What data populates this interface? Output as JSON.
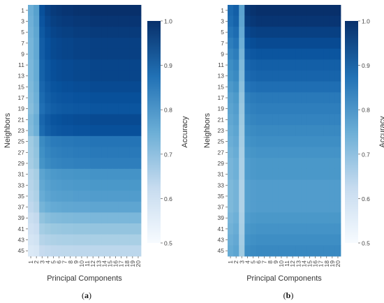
{
  "chart_data": [
    {
      "type": "heatmap",
      "caption_letter": "a",
      "xlabel": "Principal Components",
      "ylabel": "Neighbors",
      "x_ticks": [
        "1",
        "2",
        "3",
        "4",
        "5",
        "6",
        "7",
        "8",
        "9",
        "10",
        "11",
        "12",
        "13",
        "14",
        "15",
        "16",
        "17",
        "18",
        "19",
        "20"
      ],
      "y_ticks": [
        "1",
        "3",
        "5",
        "7",
        "9",
        "11",
        "13",
        "15",
        "17",
        "19",
        "21",
        "23",
        "25",
        "27",
        "29",
        "31",
        "33",
        "35",
        "37",
        "39",
        "41",
        "43",
        "45"
      ],
      "colorbar": {
        "label": "Accuracy",
        "min": 0.5,
        "max": 1.0,
        "ticks": [
          "0.5",
          "0.6",
          "0.7",
          "0.8",
          "0.9",
          "1.0"
        ]
      },
      "row_profile": [
        1.0,
        0.99,
        0.98,
        0.97,
        0.97,
        0.96,
        0.96,
        0.95,
        0.94,
        0.93,
        0.95,
        0.94,
        0.87,
        0.86,
        0.85,
        0.81,
        0.8,
        0.79,
        0.77,
        0.73,
        0.7,
        0.67,
        0.64
      ],
      "col_factor": [
        0.5,
        0.56,
        0.88,
        0.93,
        0.96,
        0.97,
        0.98,
        0.98,
        0.99,
        0.99,
        0.99,
        1.0,
        1.0,
        1.0,
        1.0,
        1.0,
        1.0,
        1.0,
        1.0,
        1.0
      ]
    },
    {
      "type": "heatmap",
      "caption_letter": "b",
      "xlabel": "Principal Components",
      "ylabel": "Neighbors",
      "x_ticks": [
        "1",
        "2",
        "3",
        "4",
        "5",
        "6",
        "7",
        "8",
        "9",
        "10",
        "11",
        "12",
        "13",
        "14",
        "15",
        "16",
        "17",
        "18",
        "19",
        "20"
      ],
      "y_ticks": [
        "1",
        "3",
        "5",
        "7",
        "9",
        "11",
        "13",
        "15",
        "17",
        "19",
        "21",
        "23",
        "25",
        "27",
        "29",
        "31",
        "33",
        "35",
        "37",
        "39",
        "41",
        "43",
        "45"
      ],
      "colorbar": {
        "label": "Accuracy",
        "min": 0.5,
        "max": 1.0,
        "ticks": [
          "0.5",
          "0.6",
          "0.7",
          "0.8",
          "0.9",
          "1.0"
        ]
      },
      "row_profile": [
        1.0,
        0.99,
        0.97,
        0.95,
        0.93,
        0.91,
        0.9,
        0.88,
        0.86,
        0.85,
        0.84,
        0.83,
        0.82,
        0.81,
        0.8,
        0.8,
        0.79,
        0.79,
        0.79,
        0.8,
        0.81,
        0.82,
        0.83
      ],
      "col_factor": [
        0.78,
        0.82,
        0.55,
        0.97,
        0.99,
        1.0,
        1.0,
        1.0,
        1.0,
        1.0,
        1.0,
        1.0,
        1.0,
        1.0,
        1.0,
        1.0,
        1.0,
        1.0,
        1.0,
        1.0
      ]
    }
  ]
}
